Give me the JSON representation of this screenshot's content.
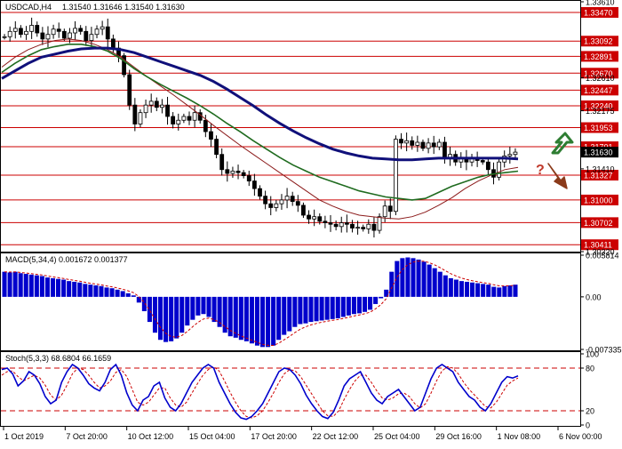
{
  "header": {
    "symbol_tf": "USDCAD,H4",
    "ohlc": "1.31540 1.31646 1.31540 1.31630"
  },
  "colors": {
    "candle": "#000000",
    "ma_fast": "#8b1a1a",
    "ma_mid": "#1f6b1f",
    "ma_slow": "#10107a",
    "level_line": "#cc0000",
    "level_label_bg": "#cc0000",
    "current_price_bg": "#000000",
    "macd_hist": "#0000cc",
    "macd_signal": "#cc0000",
    "stoch_main": "#0000cc",
    "stoch_signal": "#cc0000",
    "arrow_up": "#2e7d32",
    "arrow_down": "#8b3a1a",
    "question_mark": "#c0392b"
  },
  "chart_data": [
    {
      "type": "candlestick",
      "panel": "price",
      "ylim": [
        1.3032,
        1.3361
      ],
      "y_ticks": [
        "1.33610",
        "1.32610",
        "1.32175",
        "1.31630",
        "1.31410",
        "1.30320"
      ],
      "levels": [
        "1.33470",
        "1.33092",
        "1.32891",
        "1.32670",
        "1.32447",
        "1.32240",
        "1.31953",
        "1.31701",
        "1.31327",
        "1.31000",
        "1.30702",
        "1.30411"
      ],
      "current_price": "1.31630",
      "x_labels": [
        "1 Oct 2019",
        "7 Oct 20:00",
        "10 Oct 12:00",
        "15 Oct 04:00",
        "17 Oct 20:00",
        "22 Oct 12:00",
        "25 Oct 04:00",
        "29 Oct 16:00",
        "1 Nov 08:00",
        "6 Nov 00:00"
      ],
      "close_path": [
        1.3315,
        1.3322,
        1.3326,
        1.3318,
        1.3322,
        1.333,
        1.332,
        1.3312,
        1.3318,
        1.3325,
        1.3322,
        1.3313,
        1.332,
        1.3326,
        1.3322,
        1.331,
        1.3318,
        1.3325,
        1.3328,
        1.3312,
        1.33,
        1.329,
        1.3265,
        1.3225,
        1.32,
        1.3215,
        1.3225,
        1.323,
        1.3222,
        1.3225,
        1.321,
        1.32,
        1.3205,
        1.321,
        1.3205,
        1.3215,
        1.3205,
        1.319,
        1.318,
        1.316,
        1.314,
        1.3135,
        1.3138,
        1.3136,
        1.3132,
        1.3125,
        1.3115,
        1.3105,
        1.3095,
        1.309,
        1.3095,
        1.31,
        1.3105,
        1.3098,
        1.3093,
        1.308,
        1.3075,
        1.3078,
        1.3072,
        1.307,
        1.3068,
        1.3065,
        1.307,
        1.3068,
        1.3063,
        1.3064,
        1.3062,
        1.3068,
        1.306,
        1.3078,
        1.3092,
        1.3085,
        1.318,
        1.3175,
        1.3178,
        1.3172,
        1.3176,
        1.3168,
        1.3175,
        1.317,
        1.3176,
        1.3155,
        1.316,
        1.315,
        1.3155,
        1.315,
        1.3155,
        1.3152,
        1.315,
        1.314,
        1.313,
        1.315,
        1.3158,
        1.316,
        1.3163
      ],
      "ma_fast_path": [
        1.3275,
        1.3288,
        1.3298,
        1.3305,
        1.331,
        1.3312,
        1.331,
        1.3305,
        1.3298,
        1.3288,
        1.3275,
        1.3262,
        1.325,
        1.3238,
        1.3225,
        1.3212,
        1.3198,
        1.3185,
        1.3172,
        1.316,
        1.3148,
        1.3136,
        1.3124,
        1.3112,
        1.31,
        1.3092,
        1.3085,
        1.308,
        1.3078,
        1.3076,
        1.3075,
        1.3078,
        1.3084,
        1.3093,
        1.3103,
        1.3115,
        1.3125,
        1.3133,
        1.314,
        1.3143
      ],
      "ma_mid_path": [
        1.3268,
        1.328,
        1.329,
        1.3298,
        1.3302,
        1.3305,
        1.3305,
        1.3302,
        1.3296,
        1.3286,
        1.3273,
        1.3262,
        1.3252,
        1.3243,
        1.3234,
        1.3224,
        1.3213,
        1.3201,
        1.319,
        1.3178,
        1.3167,
        1.3156,
        1.3146,
        1.3138,
        1.313,
        1.3124,
        1.3118,
        1.3112,
        1.3108,
        1.3104,
        1.3102,
        1.31,
        1.3102,
        1.311,
        1.3118,
        1.3124,
        1.313,
        1.3134,
        1.3136,
        1.3138
      ],
      "ma_slow_path": [
        1.326,
        1.327,
        1.328,
        1.3288,
        1.3292,
        1.3296,
        1.3299,
        1.33,
        1.33,
        1.3298,
        1.3294,
        1.3288,
        1.3282,
        1.3276,
        1.327,
        1.3264,
        1.3256,
        1.3246,
        1.3235,
        1.3224,
        1.3212,
        1.3201,
        1.3191,
        1.3182,
        1.3174,
        1.3167,
        1.3162,
        1.3158,
        1.3155,
        1.3154,
        1.3153,
        1.3153,
        1.3154,
        1.3155,
        1.3155,
        1.3155,
        1.3155,
        1.3155,
        1.3155,
        1.3154
      ]
    },
    {
      "type": "histogram",
      "panel": "macd",
      "title": "MACD(5,34,4) 0.001672 0.001377",
      "ylim": [
        -0.007335,
        0.005814
      ],
      "y_ticks": [
        "0.005814",
        "0.00",
        "-0.007335"
      ],
      "values": [
        0.0035,
        0.0034,
        0.0035,
        0.0033,
        0.0032,
        0.0031,
        0.003,
        0.0029,
        0.0027,
        0.0026,
        0.0025,
        0.0024,
        0.0022,
        0.0021,
        0.002,
        0.0018,
        0.0017,
        0.0016,
        0.0015,
        0.0013,
        0.0012,
        0.001,
        0.0008,
        0.0005,
        0.0002,
        -0.0008,
        -0.002,
        -0.0035,
        -0.005,
        -0.006,
        -0.0063,
        -0.0062,
        -0.0058,
        -0.005,
        -0.004,
        -0.0032,
        -0.0026,
        -0.0024,
        -0.0028,
        -0.0035,
        -0.0042,
        -0.005,
        -0.0055,
        -0.0057,
        -0.006,
        -0.0062,
        -0.0065,
        -0.0068,
        -0.007,
        -0.007,
        -0.0068,
        -0.006,
        -0.0053,
        -0.0048,
        -0.0042,
        -0.0038,
        -0.0037,
        -0.0035,
        -0.0034,
        -0.0033,
        -0.0032,
        -0.0031,
        -0.003,
        -0.0028,
        -0.0026,
        -0.0024,
        -0.0023,
        -0.0021,
        -0.0018,
        -0.001,
        -0.0002,
        0.001,
        0.0035,
        0.005,
        0.0054,
        0.0055,
        0.0054,
        0.0052,
        0.0049,
        0.0045,
        0.004,
        0.0035,
        0.003,
        0.0026,
        0.0024,
        0.0022,
        0.0021,
        0.002,
        0.0019,
        0.0018,
        0.0017,
        0.0014,
        0.0013,
        0.0015,
        0.0016,
        0.0017
      ]
    },
    {
      "type": "line",
      "panel": "stoch",
      "title": "Stoch(5,3,3) 68.6804 66.1659",
      "ylim": [
        0,
        100
      ],
      "y_ticks": [
        "100",
        "80",
        "20",
        "0"
      ],
      "levels": [
        80,
        20
      ],
      "main": [
        78,
        80,
        72,
        55,
        62,
        75,
        70,
        58,
        40,
        30,
        35,
        60,
        75,
        85,
        80,
        70,
        58,
        52,
        48,
        60,
        78,
        85,
        70,
        45,
        28,
        20,
        35,
        40,
        55,
        60,
        38,
        25,
        20,
        30,
        45,
        60,
        70,
        80,
        85,
        80,
        60,
        45,
        30,
        18,
        10,
        8,
        12,
        20,
        30,
        45,
        60,
        75,
        80,
        78,
        70,
        58,
        42,
        30,
        20,
        12,
        9,
        18,
        35,
        55,
        65,
        70,
        75,
        60,
        45,
        35,
        30,
        40,
        45,
        50,
        40,
        30,
        20,
        25,
        45,
        65,
        80,
        85,
        80,
        75,
        60,
        50,
        40,
        35,
        25,
        20,
        30,
        45,
        60,
        68,
        66,
        69
      ],
      "signal": [
        70,
        75,
        76,
        68,
        62,
        66,
        70,
        66,
        56,
        42,
        35,
        42,
        56,
        72,
        80,
        78,
        70,
        60,
        52,
        55,
        62,
        74,
        78,
        68,
        50,
        32,
        28,
        32,
        42,
        52,
        52,
        38,
        28,
        25,
        32,
        45,
        58,
        70,
        78,
        82,
        76,
        62,
        46,
        32,
        20,
        12,
        10,
        13,
        20,
        32,
        45,
        60,
        72,
        78,
        76,
        68,
        56,
        44,
        32,
        20,
        13,
        12,
        20,
        36,
        50,
        62,
        70,
        70,
        60,
        48,
        38,
        35,
        38,
        44,
        45,
        40,
        30,
        24,
        30,
        45,
        62,
        76,
        82,
        80,
        72,
        60,
        50,
        42,
        34,
        26,
        24,
        32,
        44,
        56,
        62,
        66
      ]
    }
  ]
}
